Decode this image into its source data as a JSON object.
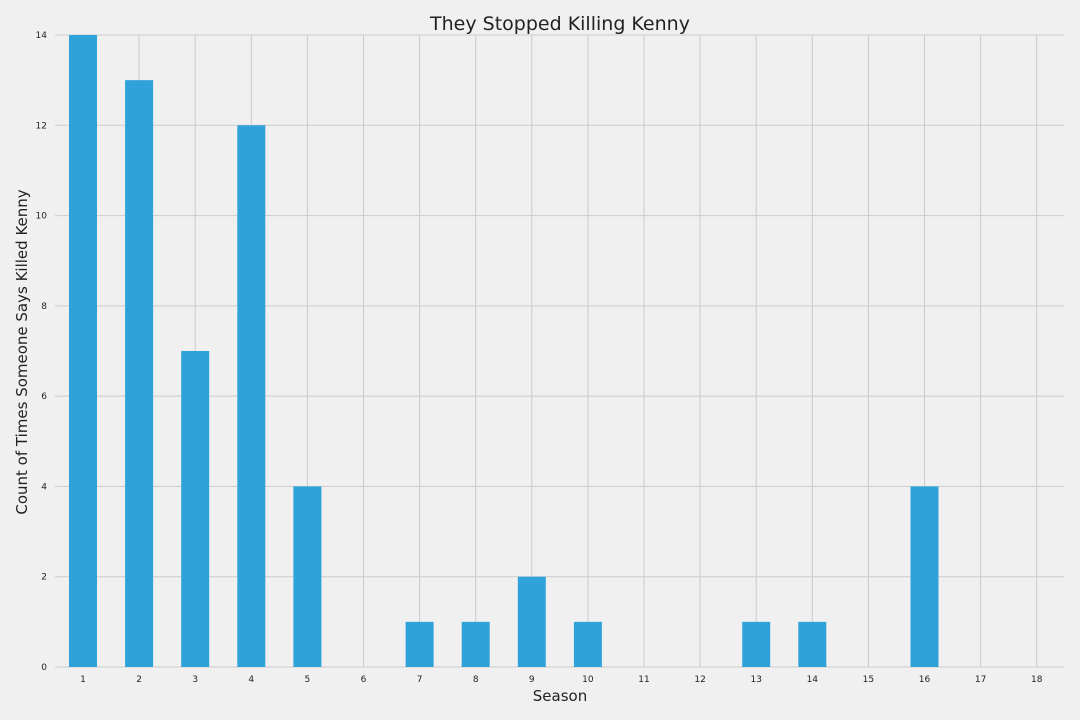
{
  "chart_data": {
    "type": "bar",
    "title": "They Stopped Killing Kenny",
    "xlabel": "Season",
    "ylabel": "Count of Times Someone Says Killed Kenny",
    "categories": [
      "1",
      "2",
      "3",
      "4",
      "5",
      "6",
      "7",
      "8",
      "9",
      "10",
      "11",
      "12",
      "13",
      "14",
      "15",
      "16",
      "17",
      "18"
    ],
    "values": [
      14,
      13,
      7,
      12,
      4,
      0,
      1,
      1,
      2,
      1,
      0,
      0,
      1,
      1,
      0,
      4,
      0,
      0
    ],
    "ylim": [
      0,
      14
    ],
    "yticks": [
      "0",
      "2",
      "4",
      "6",
      "8",
      "10",
      "12",
      "14"
    ],
    "grid": true,
    "bar_color": "#30a2da",
    "background_color": "#f0f0f0",
    "grid_color": "#cbcbcb"
  }
}
